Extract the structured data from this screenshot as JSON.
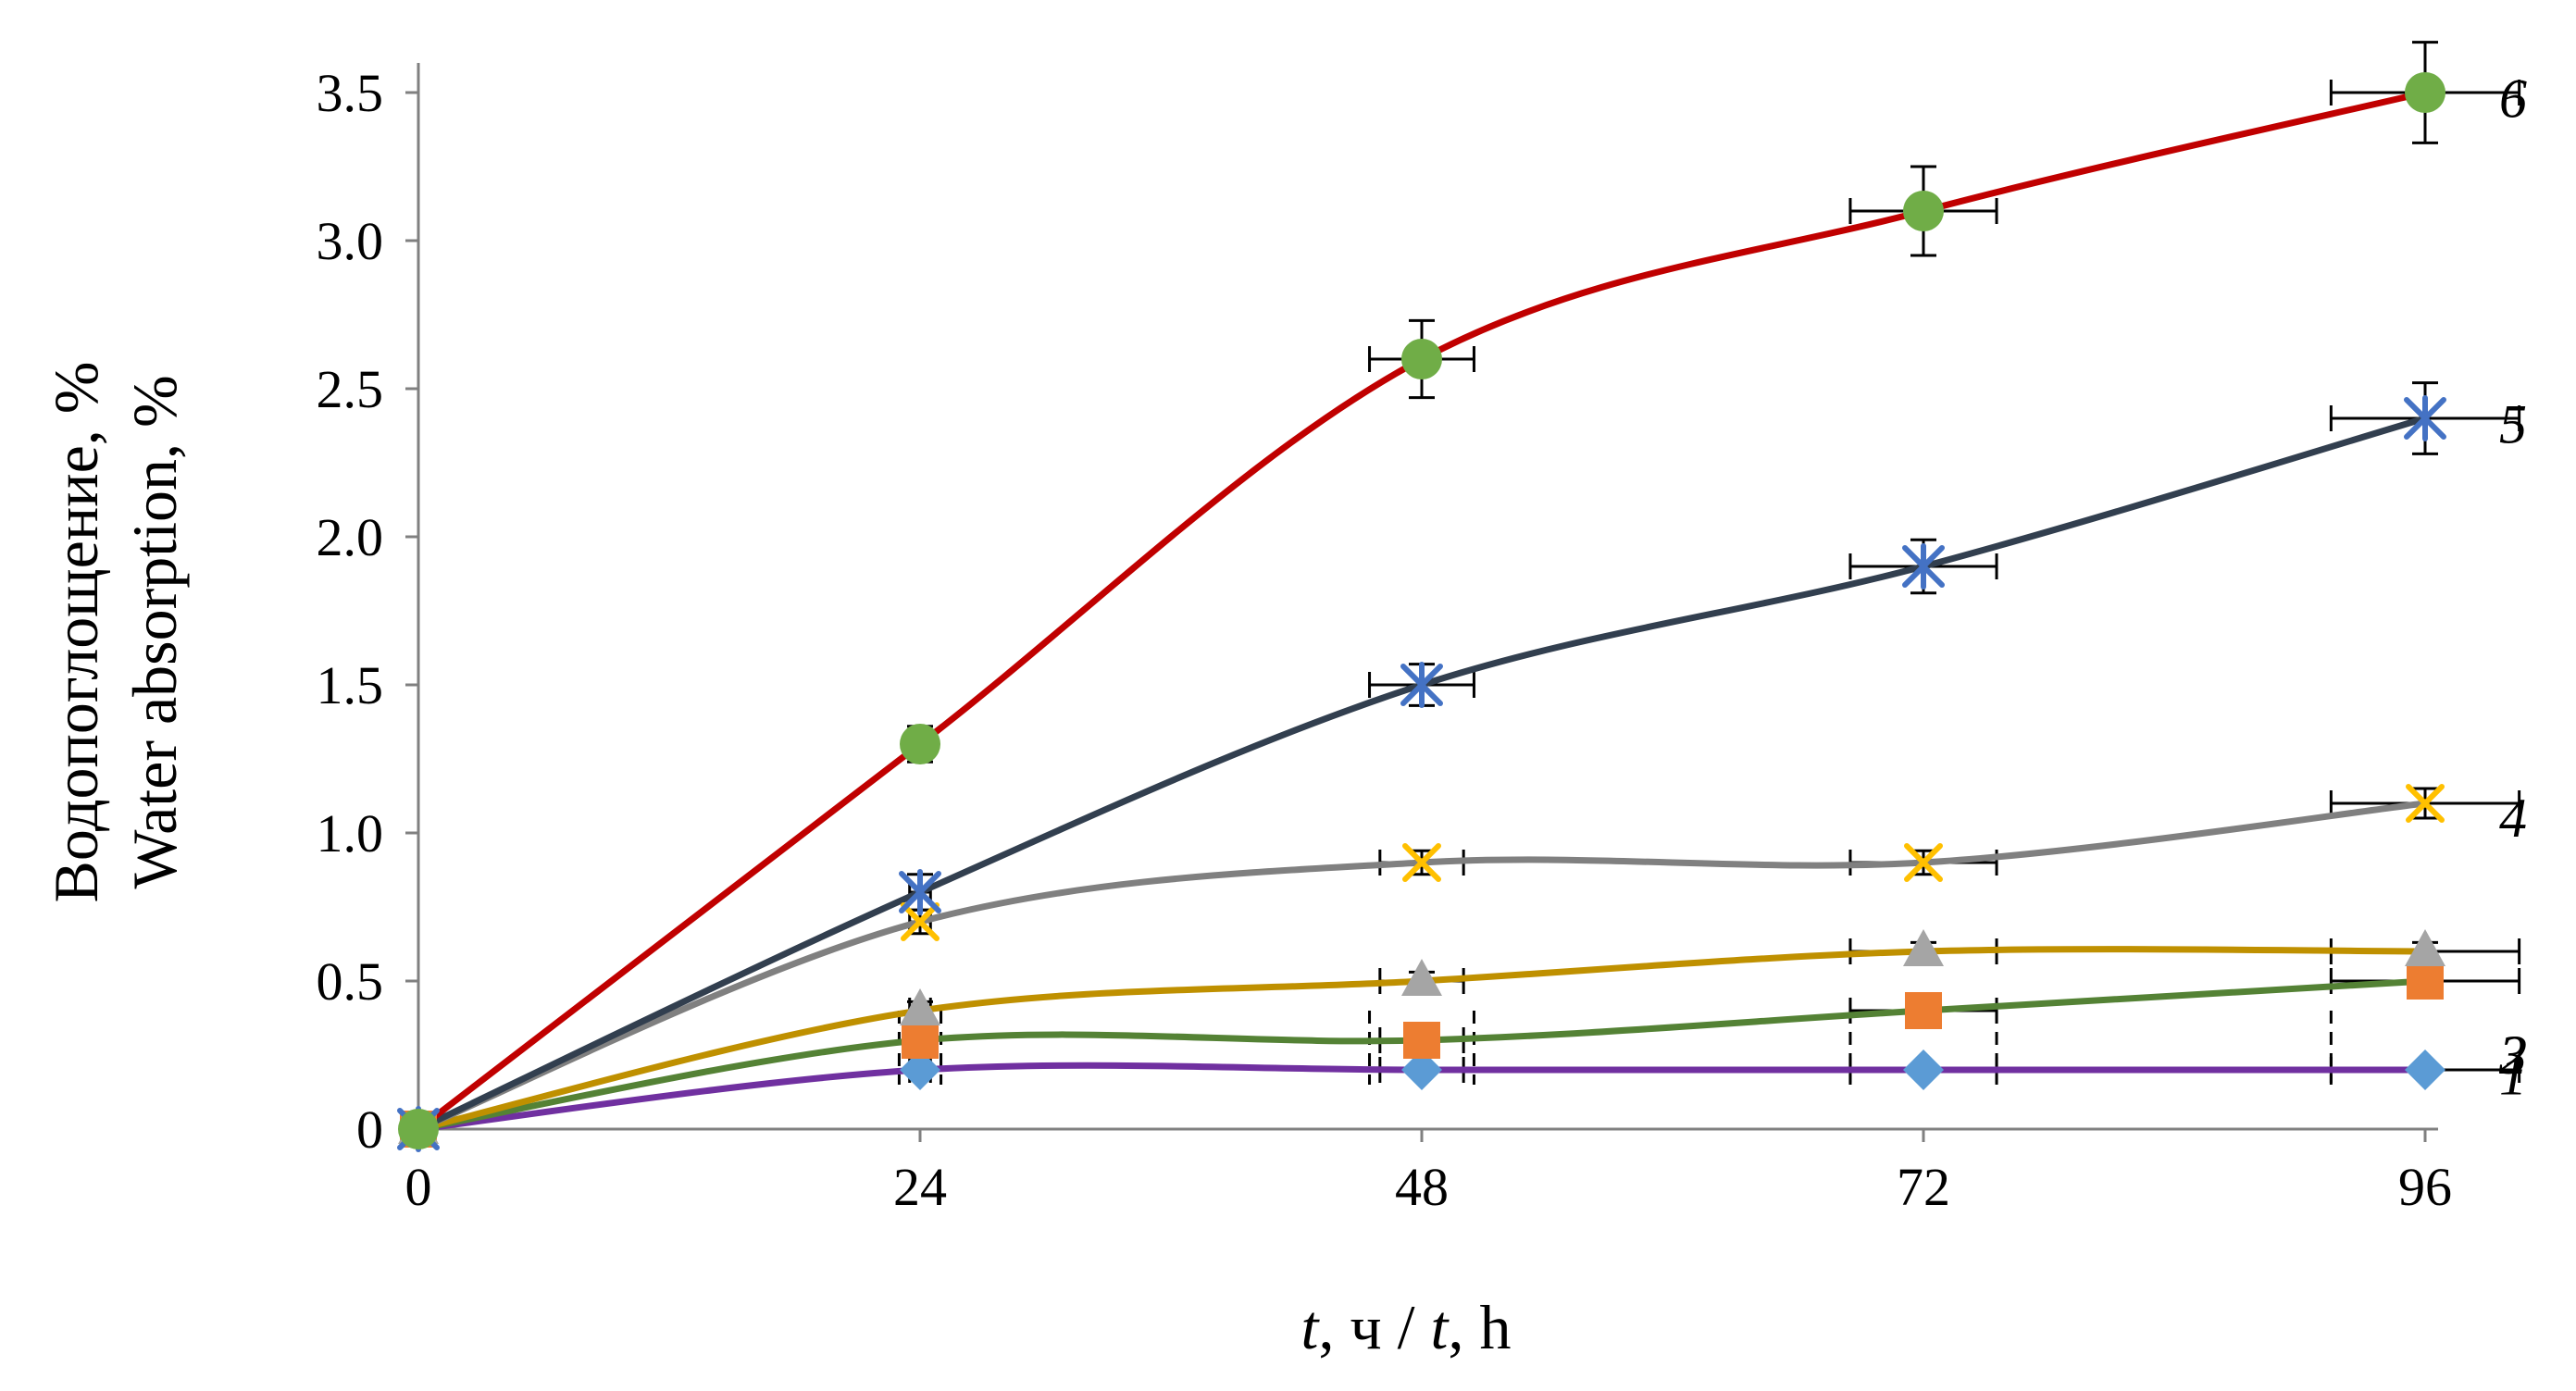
{
  "chart_data": {
    "type": "line",
    "ylabel_line1": "Водопоглощение, %",
    "ylabel_line2": "Water absorption, %",
    "xlabel_parts": [
      "t",
      ", ч / ",
      "t",
      ", h"
    ],
    "x": [
      0,
      24,
      48,
      72,
      96
    ],
    "x_ticks": [
      "0",
      "24",
      "48",
      "72",
      "96"
    ],
    "y_ticks": [
      "0",
      "0.5",
      "1.0",
      "1.5",
      "2.0",
      "2.5",
      "3.0",
      "3.5"
    ],
    "y_tick_values": [
      0,
      0.5,
      1.0,
      1.5,
      2.0,
      2.5,
      3.0,
      3.5
    ],
    "xlim": [
      0,
      96
    ],
    "ylim": [
      0,
      3.5
    ],
    "grid": false,
    "series": [
      {
        "label": "1",
        "values": [
          0,
          0.2,
          0.2,
          0.2,
          0.2
        ],
        "line_color": "#7030a0",
        "marker": "diamond",
        "marker_color": "#5b9bd5",
        "x_err": [
          0,
          0.5,
          2,
          3.5,
          4.5
        ],
        "y_err": [
          0,
          0.02,
          0.02,
          0.02,
          0.02
        ]
      },
      {
        "label": "2",
        "values": [
          0,
          0.3,
          0.3,
          0.4,
          0.5
        ],
        "line_color": "#548235",
        "marker": "square",
        "marker_color": "#ed7d31",
        "x_err": [
          0,
          0.5,
          2,
          3.5,
          4.5
        ],
        "y_err": [
          0,
          0.03,
          0.03,
          0.03,
          0.03
        ]
      },
      {
        "label": "3",
        "values": [
          0,
          0.4,
          0.5,
          0.6,
          0.6
        ],
        "line_color": "#bf9000",
        "marker": "triangle",
        "marker_color": "#a5a5a5",
        "x_err": [
          0,
          0.5,
          2,
          3.5,
          4.5
        ],
        "y_err": [
          0,
          0.03,
          0.03,
          0.03,
          0.03
        ]
      },
      {
        "label": "4",
        "values": [
          0,
          0.7,
          0.9,
          0.9,
          1.1
        ],
        "line_color": "#808080",
        "marker": "x",
        "marker_color": "#ffc000",
        "x_err": [
          0,
          0.5,
          2,
          3.5,
          4.5
        ],
        "y_err": [
          0,
          0.04,
          0.04,
          0.04,
          0.05
        ]
      },
      {
        "label": "5",
        "values": [
          0,
          0.8,
          1.5,
          1.9,
          2.4
        ],
        "line_color": "#323f4f",
        "marker": "star",
        "marker_color": "#4472c4",
        "x_err": [
          0,
          0.5,
          2.5,
          3.5,
          4.5
        ],
        "y_err": [
          0,
          0.06,
          0.07,
          0.09,
          0.12
        ]
      },
      {
        "label": "6",
        "values": [
          0,
          1.3,
          2.6,
          3.1,
          3.5
        ],
        "line_color": "#c00000",
        "marker": "circle",
        "marker_color": "#70ad47",
        "x_err": [
          0,
          0.5,
          2.5,
          3.5,
          4.5
        ],
        "y_err": [
          0,
          0.06,
          0.13,
          0.15,
          0.17
        ]
      }
    ]
  }
}
